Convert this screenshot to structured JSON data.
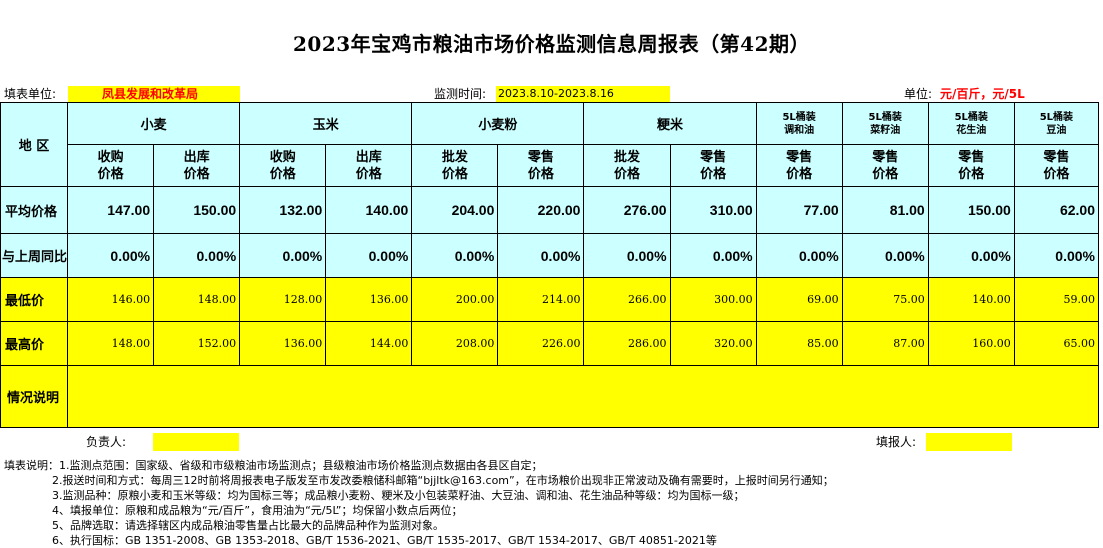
{
  "title": "2023年宝鸡市粮油市场价格监测信息周报表（第42期）",
  "header": {
    "unit_label": "填表单位:",
    "unit_value": "凤县发展和改革局",
    "time_label": "监测时间:",
    "time_value": "2023.8.10-2023.8.16",
    "measure_label": "单位:",
    "measure_value": "元/百斤，元/5L"
  },
  "table": {
    "region_label": "地    区",
    "groups": {
      "wheat": "小麦",
      "corn": "玉米",
      "flour": "小麦粉",
      "rice": "粳米",
      "blend_oil": [
        "5L桶装",
        "调和油"
      ],
      "rapeseed_oil": [
        "5L桶装",
        "菜籽油"
      ],
      "peanut_oil": [
        "5L桶装",
        "花生油"
      ],
      "soybean_oil": [
        "5L桶装",
        "豆油"
      ]
    },
    "subheaders": [
      [
        "收购",
        "价格"
      ],
      [
        "出库",
        "价格"
      ],
      [
        "收购",
        "价格"
      ],
      [
        "出库",
        "价格"
      ],
      [
        "批发",
        "价格"
      ],
      [
        "零售",
        "价格"
      ],
      [
        "批发",
        "价格"
      ],
      [
        "零售",
        "价格"
      ],
      [
        "零售",
        "价格"
      ],
      [
        "零售",
        "价格"
      ],
      [
        "零售",
        "价格"
      ],
      [
        "零售",
        "价格"
      ]
    ],
    "rows": [
      {
        "label": "平均价格",
        "values": [
          "147.00",
          "150.00",
          "132.00",
          "140.00",
          "204.00",
          "220.00",
          "276.00",
          "310.00",
          "77.00",
          "81.00",
          "150.00",
          "62.00"
        ]
      },
      {
        "label": "与上周同比",
        "values": [
          "0.00%",
          "0.00%",
          "0.00%",
          "0.00%",
          "0.00%",
          "0.00%",
          "0.00%",
          "0.00%",
          "0.00%",
          "0.00%",
          "0.00%",
          "0.00%"
        ]
      },
      {
        "label": "最低价",
        "values": [
          "146.00",
          "148.00",
          "128.00",
          "136.00",
          "200.00",
          "214.00",
          "266.00",
          "300.00",
          "69.00",
          "75.00",
          "140.00",
          "59.00"
        ]
      },
      {
        "label": "最高价",
        "values": [
          "148.00",
          "152.00",
          "136.00",
          "144.00",
          "208.00",
          "226.00",
          "286.00",
          "320.00",
          "85.00",
          "87.00",
          "160.00",
          "65.00"
        ]
      }
    ],
    "remarks_label": "情况说明",
    "remarks_value": ""
  },
  "signatures": {
    "responsible_label": "负责人:",
    "responsible_value": "",
    "filler_label": "填报人:",
    "filler_value": ""
  },
  "notes": [
    "填表说明：1.监测点范围：国家级、省级和市级粮油市场监测点；县级粮油市场价格监测点数据由各县区自定；",
    "2.报送时间和方式：每周三12时前将周报表电子版发至市发改委粮储科邮箱“bjjltk@163.com”，在市场粮价出现非正常波动及确有需要时，上报时间另行通知；",
    "3.监测品种：原粮小麦和玉米等级：均为国标三等；成品粮小麦粉、粳米及小包装菜籽油、大豆油、调和油、花生油品种等级：均为国标一级；",
    "4、填报单位：原粮和成品粮为“元/百斤”，食用油为“元/5L”；均保留小数点后两位；",
    "5、品牌选取：请选择辖区内成品粮油零售量占比最大的品牌品种作为监测对象。",
    "6、执行国标：GB 1351-2008、GB 1353-2018、GB/T 1536-2021、GB/T 1535-2017、GB/T 1534-2017、GB/T 40851-2021等"
  ],
  "colors": {
    "header_fill": "#ccffff",
    "highlight_fill": "#ffff00",
    "unit_text": "#ff0000"
  }
}
